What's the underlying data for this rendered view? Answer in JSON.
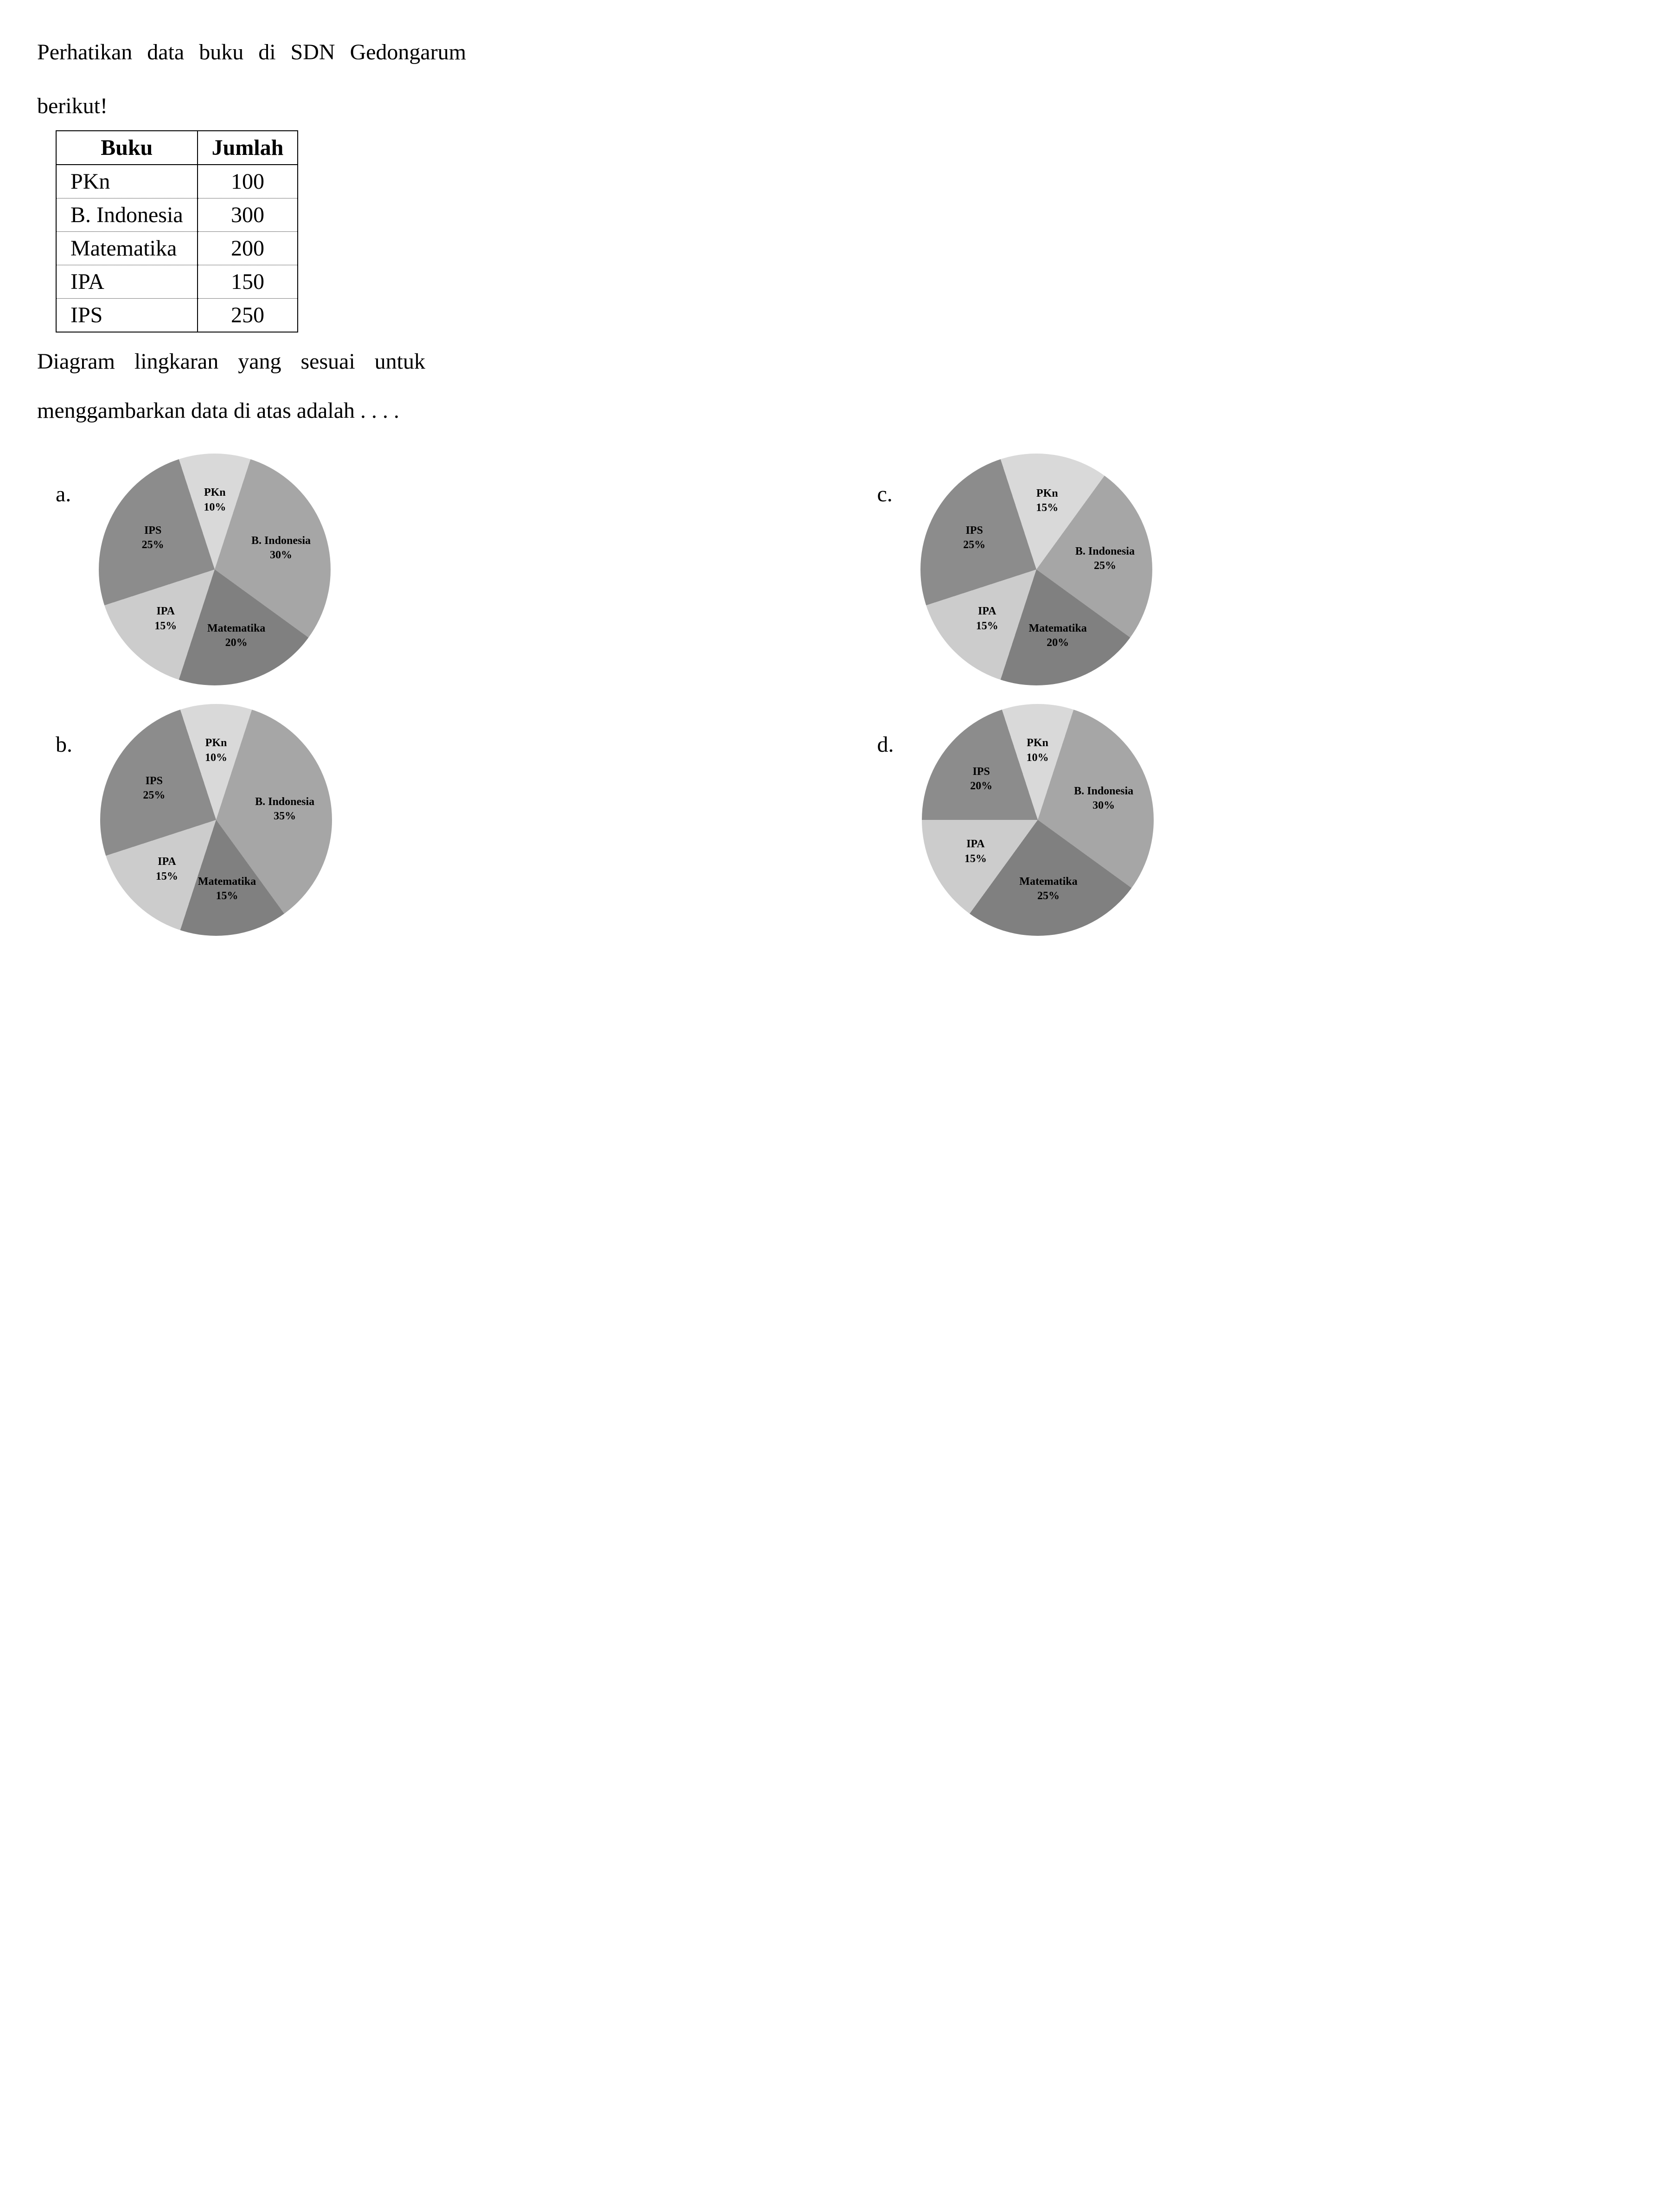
{
  "question_line1": "Perhatikan data buku di SDN Gedongarum",
  "question_line2": "berikut!",
  "question_line3": "Diagram lingkaran yang sesuai untuk",
  "question_line4": "menggambarkan data di atas adalah . . . .",
  "table": {
    "headers": [
      "Buku",
      "Jumlah"
    ],
    "rows": [
      [
        "PKn",
        "100"
      ],
      [
        "B. Indonesia",
        "300"
      ],
      [
        "Matematika",
        "200"
      ],
      [
        "IPA",
        "150"
      ],
      [
        "IPS",
        "250"
      ]
    ]
  },
  "colors": {
    "PKn": "#d9d9d9",
    "BIndonesia": "#a6a6a6",
    "Matematika": "#808080",
    "IPA": "#cccccc",
    "IPS": "#8c8c8c",
    "label": "#000000"
  },
  "options": {
    "a": {
      "label": "a.",
      "slices": [
        {
          "name": "PKn",
          "pct": 10,
          "label1": "PKn",
          "label2": "10%"
        },
        {
          "name": "BIndonesia",
          "pct": 30,
          "label1": "B. Indonesia",
          "label2": "30%"
        },
        {
          "name": "Matematika",
          "pct": 20,
          "label1": "Matematika",
          "label2": "20%"
        },
        {
          "name": "IPA",
          "pct": 15,
          "label1": "IPA",
          "label2": "15%"
        },
        {
          "name": "IPS",
          "pct": 25,
          "label1": "IPS",
          "label2": "25%"
        }
      ]
    },
    "c": {
      "label": "c.",
      "slices": [
        {
          "name": "PKn",
          "pct": 15,
          "label1": "PKn",
          "label2": "15%"
        },
        {
          "name": "BIndonesia",
          "pct": 25,
          "label1": "B. Indonesia",
          "label2": "25%"
        },
        {
          "name": "Matematika",
          "pct": 20,
          "label1": "Matematika",
          "label2": "20%"
        },
        {
          "name": "IPA",
          "pct": 15,
          "label1": "IPA",
          "label2": "15%"
        },
        {
          "name": "IPS",
          "pct": 25,
          "label1": "IPS",
          "label2": "25%"
        }
      ]
    },
    "b": {
      "label": "b.",
      "slices": [
        {
          "name": "PKn",
          "pct": 10,
          "label1": "PKn",
          "label2": "10%"
        },
        {
          "name": "BIndonesia",
          "pct": 35,
          "label1": "B. Indonesia",
          "label2": "35%"
        },
        {
          "name": "Matematika",
          "pct": 15,
          "label1": "Matematika",
          "label2": "15%"
        },
        {
          "name": "IPA",
          "pct": 15,
          "label1": "IPA",
          "label2": "15%"
        },
        {
          "name": "IPS",
          "pct": 25,
          "label1": "IPS",
          "label2": "25%"
        }
      ]
    },
    "d": {
      "label": "d.",
      "slices": [
        {
          "name": "PKn",
          "pct": 10,
          "label1": "PKn",
          "label2": "10%"
        },
        {
          "name": "BIndonesia",
          "pct": 30,
          "label1": "B. Indonesia",
          "label2": "30%"
        },
        {
          "name": "Matematika",
          "pct": 25,
          "label1": "Matematika",
          "label2": "25%"
        },
        {
          "name": "IPA",
          "pct": 15,
          "label1": "IPA",
          "label2": "15%"
        },
        {
          "name": "IPS",
          "pct": 20,
          "label1": "IPS",
          "label2": "20%"
        }
      ]
    }
  },
  "pie_start_angle": -18,
  "pie_radius": 250,
  "label_radius": 150
}
